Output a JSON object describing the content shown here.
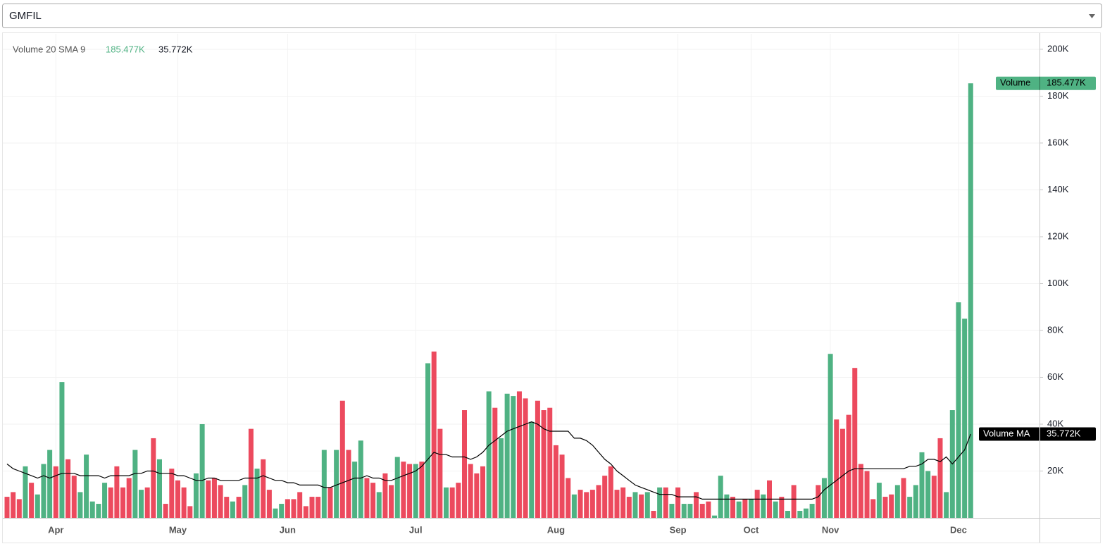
{
  "dropdown": {
    "selected": "GMFIL"
  },
  "chart_data": {
    "type": "bar",
    "title": "Volume 20 SMA 9",
    "categories": [
      null,
      null,
      null,
      null,
      null,
      null,
      null,
      null,
      "Apr",
      null,
      null,
      null,
      null,
      null,
      null,
      null,
      null,
      null,
      null,
      null,
      null,
      null,
      null,
      null,
      null,
      null,
      null,
      null,
      "May",
      null,
      null,
      null,
      null,
      null,
      null,
      null,
      null,
      null,
      null,
      null,
      null,
      null,
      null,
      null,
      null,
      null,
      "Jun",
      null,
      null,
      null,
      null,
      null,
      null,
      null,
      null,
      null,
      null,
      null,
      null,
      null,
      null,
      null,
      null,
      null,
      null,
      null,
      null,
      "Jul",
      null,
      null,
      null,
      null,
      null,
      null,
      null,
      null,
      null,
      null,
      null,
      null,
      null,
      null,
      null,
      null,
      null,
      null,
      null,
      null,
      null,
      null,
      "Aug",
      null,
      null,
      null,
      null,
      null,
      null,
      null,
      null,
      null,
      null,
      null,
      null,
      null,
      null,
      null,
      null,
      null,
      null,
      null,
      "Sep",
      null,
      null,
      null,
      null,
      null,
      null,
      null,
      null,
      null,
      null,
      null,
      "Oct",
      null,
      null,
      null,
      null,
      null,
      null,
      null,
      null,
      null,
      null,
      null,
      null,
      "Nov",
      null,
      null,
      null,
      null,
      null,
      null,
      null,
      null,
      null,
      null,
      null,
      null,
      null,
      null,
      null,
      null,
      null,
      null,
      null,
      null,
      "Dec",
      null,
      null
    ],
    "series": [
      {
        "name": "Volume",
        "type": "bar",
        "up_color": "#4fb283",
        "down_color": "#ec4a5e",
        "value_label": "185.477K",
        "values": [
          9000,
          11000,
          8000,
          22000,
          15000,
          10000,
          23000,
          29000,
          22000,
          58000,
          25000,
          18000,
          11000,
          27000,
          7000,
          6000,
          15000,
          13000,
          22000,
          13000,
          17000,
          29000,
          12000,
          13000,
          34000,
          25000,
          6000,
          21000,
          16000,
          13000,
          5000,
          19000,
          40000,
          16000,
          17000,
          14000,
          9000,
          7000,
          9000,
          14000,
          38000,
          21000,
          25000,
          12000,
          4000,
          6000,
          8000,
          8000,
          11000,
          5000,
          9000,
          9000,
          29000,
          13000,
          29000,
          50000,
          29000,
          24000,
          33000,
          17000,
          15000,
          11000,
          19000,
          14000,
          26000,
          24000,
          23000,
          23000,
          24000,
          66000,
          71000,
          38000,
          13000,
          13000,
          15000,
          46000,
          23000,
          19000,
          22000,
          54000,
          47000,
          34000,
          53000,
          52000,
          54000,
          51000,
          41000,
          50000,
          46000,
          47000,
          31000,
          27000,
          17000,
          10000,
          12000,
          11000,
          12000,
          14000,
          18000,
          22000,
          12000,
          13000,
          9000,
          11000,
          10000,
          11000,
          3000,
          13000,
          13000,
          6000,
          13000,
          6000,
          6000,
          11000,
          6000,
          7000,
          1000,
          18000,
          10000,
          9000,
          7000,
          8000,
          8000,
          12000,
          10000,
          16000,
          7000,
          9000,
          3000,
          14000,
          3000,
          4000,
          6000,
          14000,
          17000,
          70000,
          42000,
          38000,
          44000,
          64000,
          23000,
          20000,
          8000,
          15000,
          9000,
          10000,
          14000,
          17000,
          9000,
          14000,
          28000,
          20000,
          18000,
          34000,
          11000,
          46000,
          92000,
          85000,
          185477
        ],
        "up": [
          false,
          false,
          false,
          true,
          false,
          true,
          true,
          true,
          false,
          true,
          false,
          false,
          true,
          true,
          true,
          true,
          true,
          false,
          false,
          false,
          false,
          true,
          true,
          false,
          false,
          true,
          false,
          false,
          false,
          false,
          false,
          true,
          true,
          false,
          false,
          false,
          false,
          true,
          false,
          true,
          false,
          true,
          false,
          false,
          true,
          true,
          false,
          false,
          false,
          false,
          false,
          false,
          true,
          false,
          true,
          false,
          false,
          true,
          true,
          false,
          false,
          true,
          false,
          false,
          true,
          false,
          false,
          true,
          false,
          true,
          false,
          false,
          true,
          false,
          false,
          false,
          false,
          false,
          false,
          true,
          false,
          true,
          true,
          true,
          false,
          false,
          true,
          false,
          false,
          false,
          false,
          false,
          false,
          true,
          false,
          false,
          false,
          false,
          false,
          false,
          false,
          false,
          false,
          true,
          false,
          true,
          false,
          true,
          false,
          true,
          false,
          true,
          true,
          false,
          false,
          false,
          true,
          true,
          true,
          false,
          true,
          false,
          true,
          false,
          true,
          false,
          true,
          false,
          true,
          false,
          true,
          true,
          true,
          false,
          true,
          true,
          false,
          false,
          false,
          false,
          false,
          false,
          false,
          true,
          false,
          false,
          true,
          false,
          true,
          true,
          true,
          true,
          false,
          false,
          true,
          true,
          true,
          true,
          true
        ]
      },
      {
        "name": "Volume MA",
        "type": "line",
        "color": "#000000",
        "value_label": "35.772K",
        "values": [
          23000,
          21000,
          20000,
          19000,
          18000,
          17000,
          18000,
          17000,
          18000,
          19000,
          19000,
          19000,
          18000,
          18000,
          18000,
          18000,
          17000,
          18000,
          18000,
          18000,
          18000,
          19000,
          19000,
          20000,
          20000,
          19000,
          19000,
          19000,
          18000,
          18000,
          17000,
          16000,
          16000,
          17000,
          17000,
          16000,
          16000,
          16000,
          16000,
          17000,
          17000,
          17000,
          18000,
          17000,
          16000,
          16000,
          15000,
          15000,
          14000,
          14000,
          14000,
          14000,
          13000,
          13000,
          14000,
          15000,
          16000,
          17000,
          17000,
          18000,
          17000,
          17000,
          16000,
          16000,
          17000,
          18000,
          19000,
          20000,
          22000,
          25000,
          28000,
          27000,
          27000,
          26000,
          26000,
          26000,
          25000,
          26000,
          28000,
          31000,
          33000,
          35000,
          37000,
          38000,
          39000,
          40000,
          41000,
          40000,
          38000,
          37000,
          37000,
          37000,
          37000,
          34000,
          34000,
          33000,
          31000,
          28000,
          25000,
          23000,
          20000,
          18000,
          16000,
          14000,
          13000,
          12000,
          11000,
          10000,
          10000,
          10000,
          9000,
          9000,
          9000,
          9000,
          8000,
          8000,
          8000,
          8000,
          8000,
          8000,
          8000,
          8000,
          8000,
          8000,
          8000,
          8000,
          8000,
          8000,
          8000,
          8000,
          8000,
          8000,
          8000,
          9000,
          12000,
          14000,
          16000,
          18000,
          20000,
          21000,
          21000,
          21000,
          21000,
          21000,
          21000,
          21000,
          21000,
          21000,
          22000,
          22000,
          23000,
          25000,
          25000,
          24000,
          26000,
          23000,
          26000,
          29000,
          35772
        ]
      }
    ],
    "ylim": [
      0,
      206600
    ],
    "yticks": [
      {
        "value": 20000,
        "label": "20K"
      },
      {
        "value": 40000,
        "label": "40K"
      },
      {
        "value": 60000,
        "label": "60K"
      },
      {
        "value": 80000,
        "label": "80K"
      },
      {
        "value": 100000,
        "label": "100K"
      },
      {
        "value": 120000,
        "label": "120K"
      },
      {
        "value": 140000,
        "label": "140K"
      },
      {
        "value": 160000,
        "label": "160K"
      },
      {
        "value": 180000,
        "label": "180K"
      },
      {
        "value": 200000,
        "label": "200K"
      }
    ],
    "grid": true
  }
}
